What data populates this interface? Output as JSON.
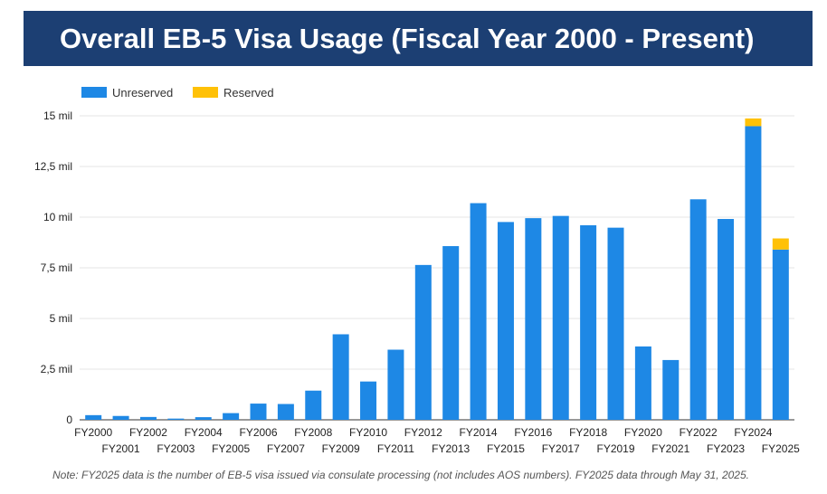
{
  "title": "Overall EB-5 Visa Usage (Fiscal Year 2000 - Present)",
  "note": "Note: FY2025 data is the number of EB-5 visa issued via consulate processing (not includes AOS numbers). FY2025 data through May 31, 2025.",
  "colors": {
    "unreserved": "#1e88e5",
    "reserved": "#ffc107",
    "banner": "#1c3f73"
  },
  "chart_data": {
    "type": "bar",
    "stacked": true,
    "categories": [
      "FY2000",
      "FY2001",
      "FY2002",
      "FY2003",
      "FY2004",
      "FY2005",
      "FY2006",
      "FY2007",
      "FY2008",
      "FY2009",
      "FY2010",
      "FY2011",
      "FY2012",
      "FY2013",
      "FY2014",
      "FY2015",
      "FY2016",
      "FY2017",
      "FY2018",
      "FY2019",
      "FY2020",
      "FY2021",
      "FY2022",
      "FY2023",
      "FY2024",
      "FY2025"
    ],
    "series": [
      {
        "name": "Unreserved",
        "values": [
          230,
          190,
          140,
          60,
          130,
          330,
          800,
          780,
          1440,
          4220,
          1890,
          3460,
          7640,
          8570,
          10690,
          9760,
          9950,
          10060,
          9600,
          9480,
          3620,
          2950,
          10880,
          9910,
          14490,
          8400
        ]
      },
      {
        "name": "Reserved",
        "values": [
          0,
          0,
          0,
          0,
          0,
          0,
          0,
          0,
          0,
          0,
          0,
          0,
          0,
          0,
          0,
          0,
          0,
          0,
          0,
          0,
          0,
          0,
          0,
          0,
          380,
          550
        ]
      }
    ],
    "yticks": [
      0,
      2500,
      5000,
      7500,
      10000,
      12500,
      15000
    ],
    "ytick_labels": [
      "0",
      "2,5 mil",
      "5 mil",
      "7,5 mil",
      "10 mil",
      "12,5 mil",
      "15 mil"
    ],
    "ylim": [
      0,
      15000
    ],
    "grid": true,
    "legend": "top-left",
    "title": "Overall EB-5 Visa Usage (Fiscal Year 2000 - Present)"
  }
}
